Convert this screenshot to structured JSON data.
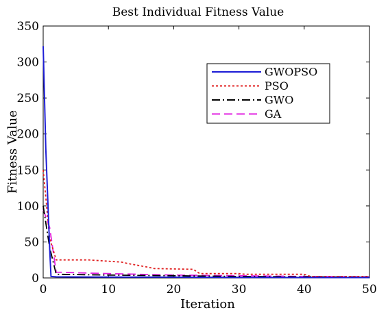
{
  "chart_data": {
    "type": "line",
    "title": "Best Individual Fitness Value",
    "xlabel": "Iteration",
    "ylabel": "Fitness Value",
    "xlim": [
      0,
      50
    ],
    "ylim": [
      0,
      350
    ],
    "xticks": [
      "0",
      "10",
      "20",
      "30",
      "40",
      "50"
    ],
    "yticks": [
      "0",
      "50",
      "100",
      "150",
      "200",
      "250",
      "300",
      "350"
    ],
    "grid": false,
    "legend_position": "top-right",
    "series": [
      {
        "name": "GWOPSO",
        "color": "#1f1fd6",
        "dash": "solid",
        "x": [
          0,
          0.4,
          1,
          1.2,
          2,
          10,
          20,
          30,
          40,
          50
        ],
        "y": [
          322,
          180,
          40,
          2,
          1.5,
          1.2,
          1,
          0.8,
          0.6,
          0.5
        ]
      },
      {
        "name": "PSO",
        "color": "#e02020",
        "dash": "dotted",
        "x": [
          0,
          1,
          2,
          7,
          12,
          13,
          16,
          17,
          23,
          24,
          30,
          31,
          40,
          41,
          50
        ],
        "y": [
          150,
          55,
          25,
          25,
          22,
          20,
          15,
          13,
          12,
          6,
          6,
          5,
          5,
          2,
          2
        ]
      },
      {
        "name": "GWO",
        "color": "#000000",
        "dash": "dashdot",
        "x": [
          0,
          1,
          2,
          10,
          20,
          30,
          40,
          50
        ],
        "y": [
          100,
          42,
          5,
          4,
          3,
          2,
          1.5,
          1
        ]
      },
      {
        "name": "GA",
        "color": "#e020e0",
        "dash": "dashed",
        "x": [
          0,
          1,
          2,
          10,
          20,
          30,
          40,
          50
        ],
        "y": [
          95,
          70,
          8,
          6,
          4,
          3,
          2,
          1.5
        ]
      }
    ]
  }
}
